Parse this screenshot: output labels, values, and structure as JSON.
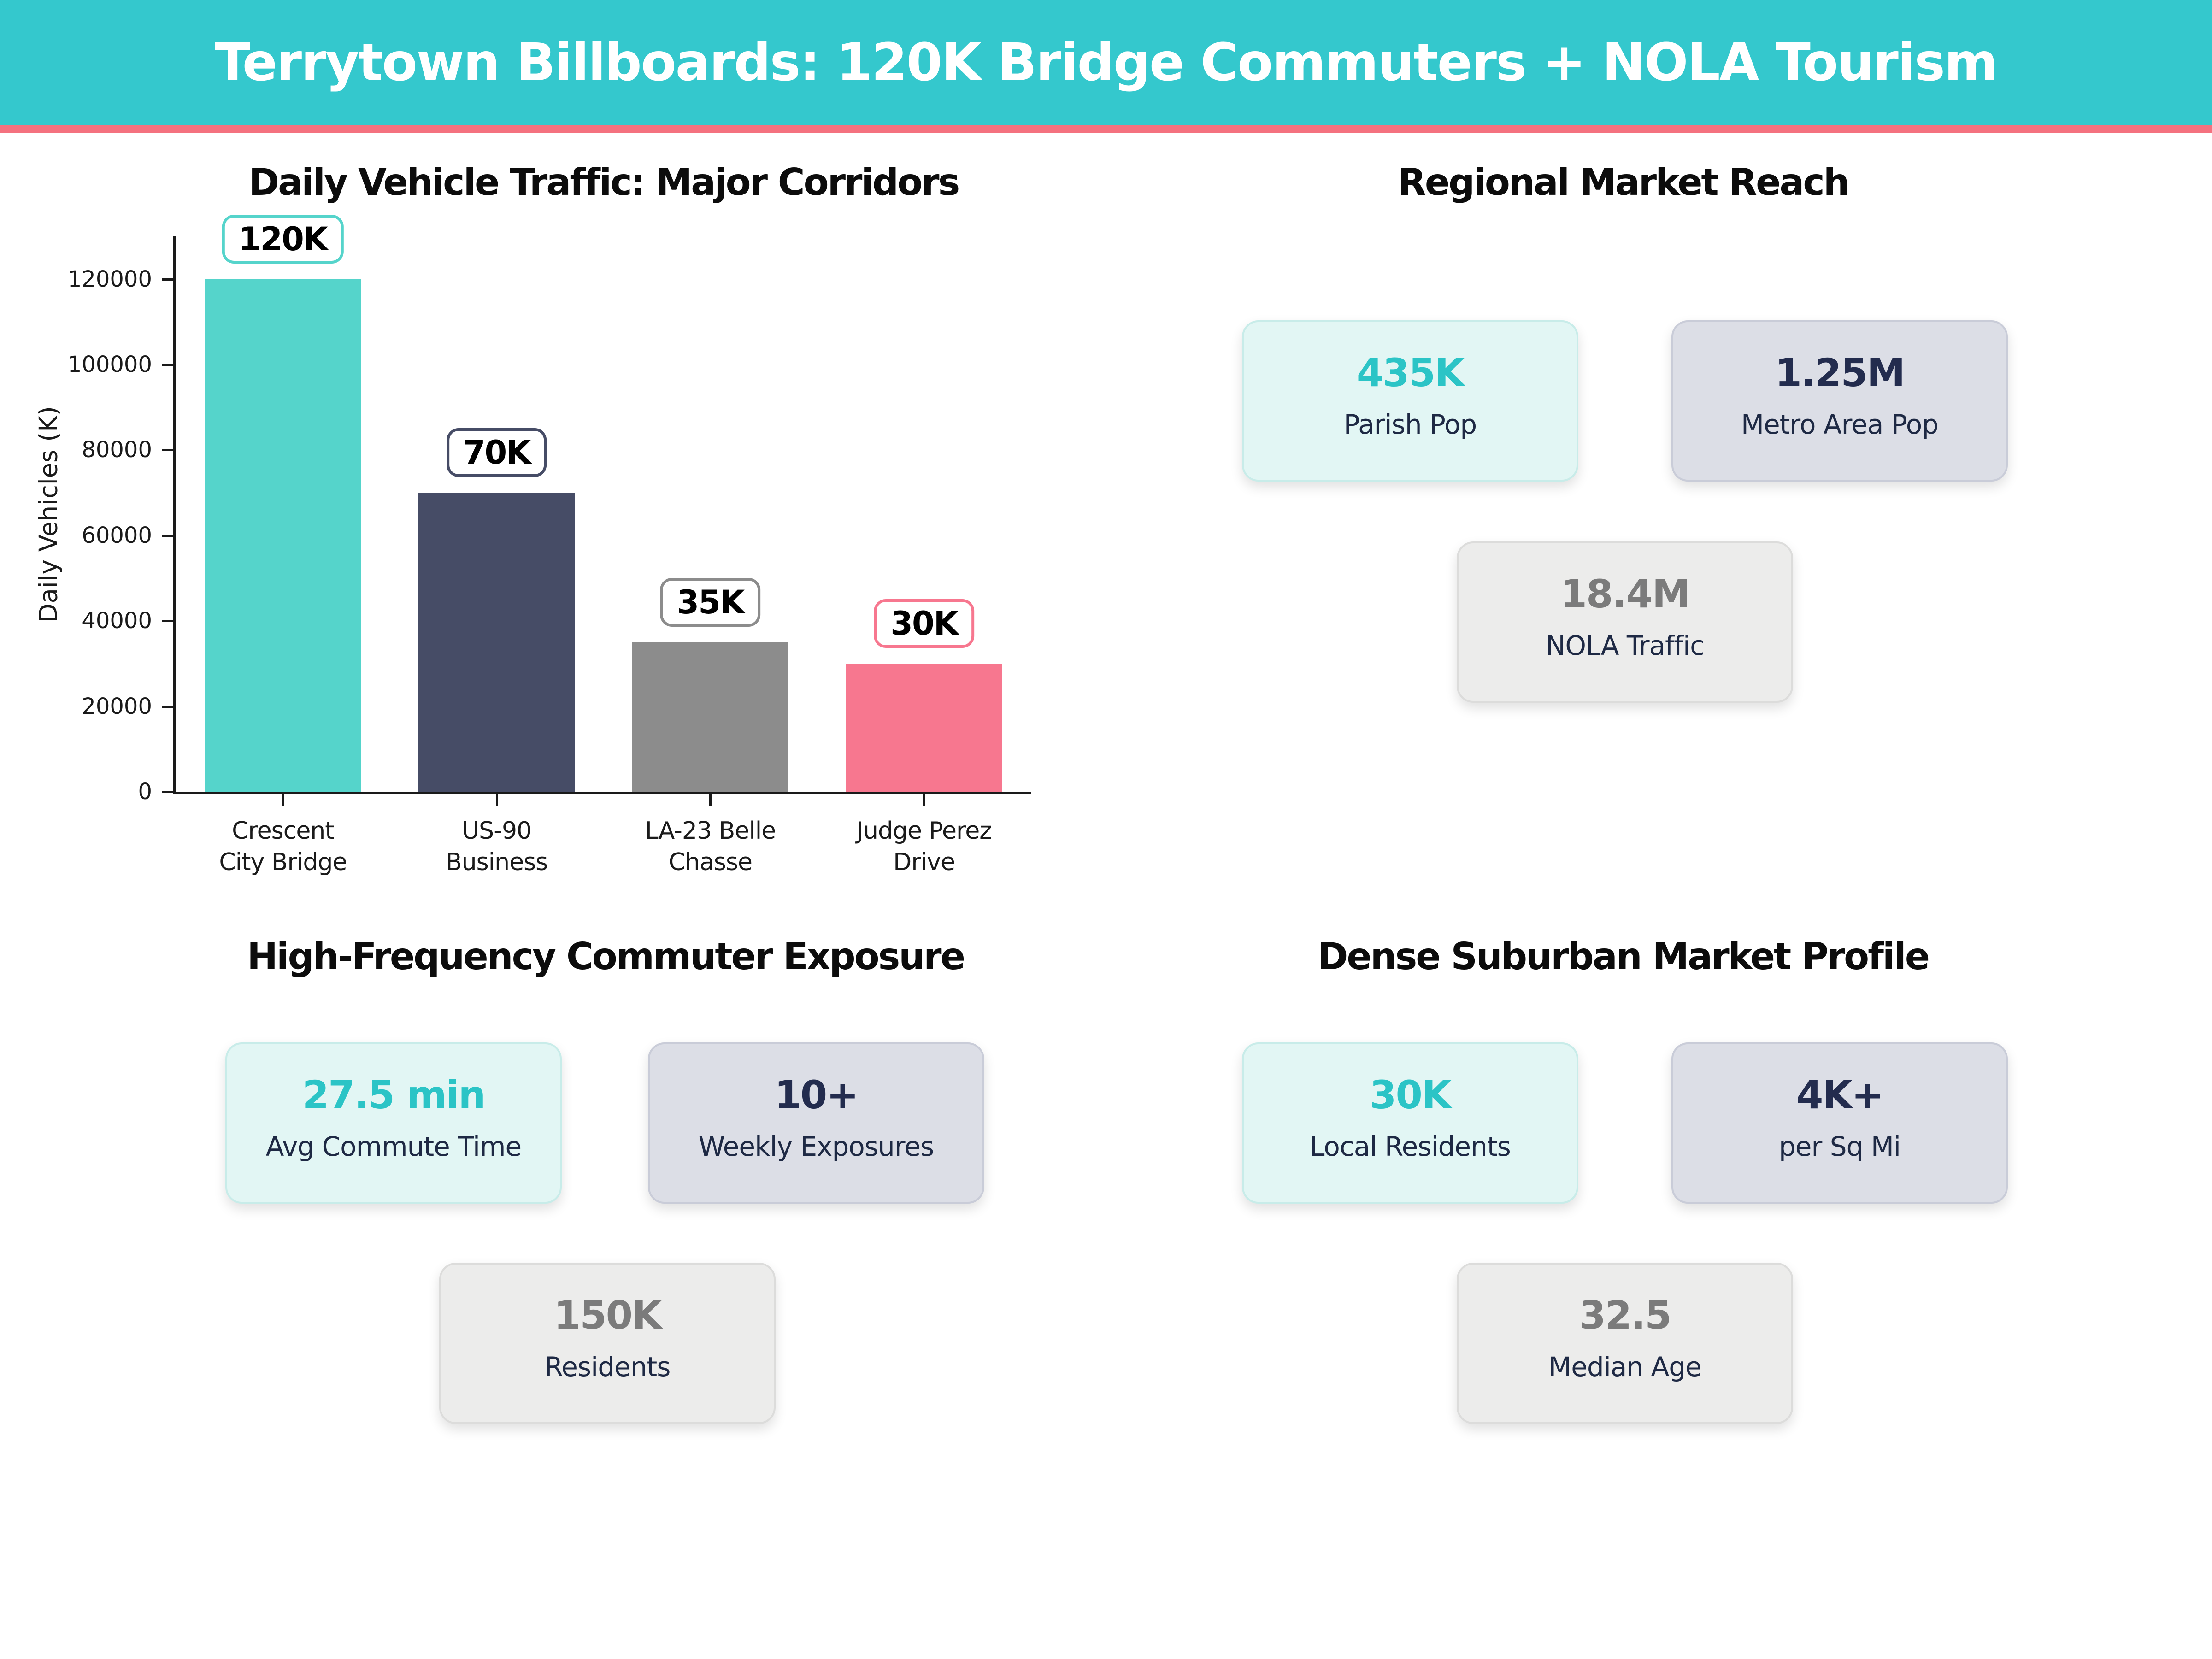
{
  "palette": {
    "header_bg": "#34c8cd",
    "header_text": "#ffffff",
    "accent_pink": "#f4717f",
    "teal_value": "#2bc4c6",
    "navy_value": "#232c4e",
    "gray_value": "#7b7b7b",
    "label_navy": "#1e2944",
    "mint_bg": "#e2f6f4",
    "mint_border": "#c8ece9",
    "lavender_bg": "#dcdee6",
    "lavender_border": "#c9ccd8",
    "gray_bg": "#ececeb",
    "gray_border": "#dcdcdb",
    "axis_color": "#1a1a1a"
  },
  "header": {
    "title": "Terrytown Billboards: 120K Bridge Commuters + NOLA Tourism"
  },
  "chart_data": {
    "type": "bar",
    "title": "Daily Vehicle Traffic: Major Corridors",
    "xlabel": "",
    "ylabel": "Daily Vehicles (K)",
    "categories": [
      "Crescent\nCity Bridge",
      "US-90\nBusiness",
      "LA-23 Belle\nChasse",
      "Judge Perez\nDrive"
    ],
    "values": [
      120000,
      70000,
      35000,
      30000
    ],
    "bar_labels": [
      "120K",
      "70K",
      "35K",
      "30K"
    ],
    "bar_colors": [
      "#55d4cb",
      "#464c66",
      "#8c8c8c",
      "#f7778f"
    ],
    "yticks": [
      0,
      20000,
      40000,
      60000,
      80000,
      100000,
      120000
    ],
    "ylim": [
      0,
      130000
    ],
    "grid": false,
    "legend": "none"
  },
  "sections": {
    "market_reach": {
      "title": "Regional Market Reach",
      "cards": [
        {
          "value": "435K",
          "label": "Parish Pop",
          "style": "mint"
        },
        {
          "value": "1.25M",
          "label": "Metro Area Pop",
          "style": "lavender"
        },
        {
          "value": "18.4M",
          "label": "NOLA Traffic",
          "style": "gray"
        }
      ]
    },
    "commuter_exposure": {
      "title": "High-Frequency Commuter Exposure",
      "cards": [
        {
          "value": "27.5 min",
          "label": "Avg Commute Time",
          "style": "mint"
        },
        {
          "value": "10+",
          "label": "Weekly Exposures",
          "style": "lavender"
        },
        {
          "value": "150K",
          "label": "Residents",
          "style": "gray"
        }
      ]
    },
    "suburban_profile": {
      "title": "Dense Suburban Market Profile",
      "cards": [
        {
          "value": "30K",
          "label": "Local Residents",
          "style": "mint"
        },
        {
          "value": "4K+",
          "label": "per Sq Mi",
          "style": "lavender"
        },
        {
          "value": "32.5",
          "label": "Median Age",
          "style": "gray"
        }
      ]
    }
  }
}
